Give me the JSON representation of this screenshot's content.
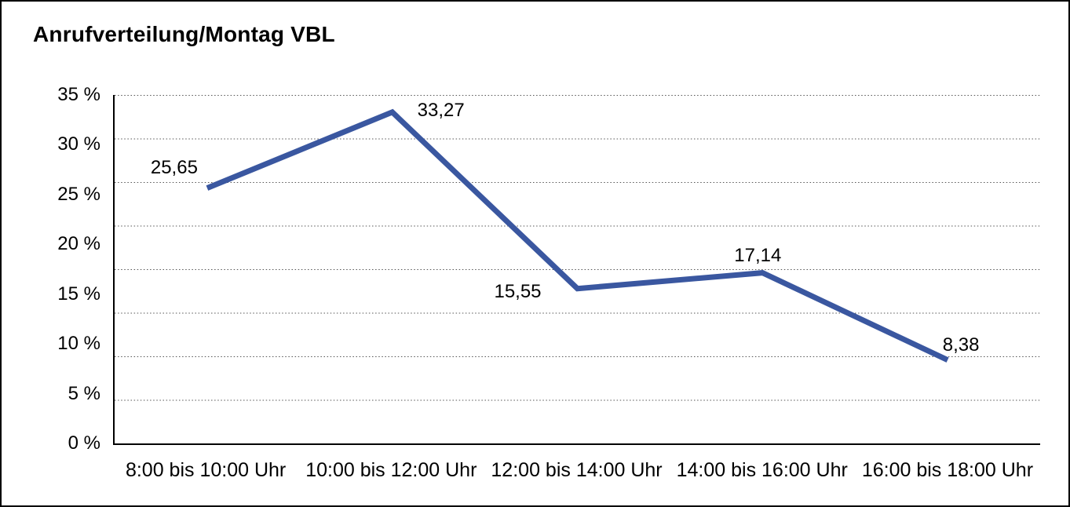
{
  "title": "Anrufverteilung/Montag VBL",
  "chart_data": {
    "type": "line",
    "title": "Anrufverteilung/Montag VBL",
    "categories": [
      "8:00 bis 10:00 Uhr",
      "10:00 bis 12:00 Uhr",
      "12:00 bis 14:00 Uhr",
      "14:00 bis 16:00 Uhr",
      "16:00 bis 18:00 Uhr"
    ],
    "values": [
      25.65,
      33.27,
      15.55,
      17.14,
      8.38
    ],
    "value_labels": [
      "25,65",
      "33,27",
      "15,55",
      "17,14",
      "8,38"
    ],
    "unit": "%",
    "ylim": [
      0,
      35
    ],
    "yticks": [
      "35 %",
      "30 %",
      "25 %",
      "20 %",
      "15 %",
      "10 %",
      "5 %",
      "0 %"
    ],
    "grid": "horizontal-dotted",
    "legend": "none",
    "line_color": "#3A57A0"
  }
}
